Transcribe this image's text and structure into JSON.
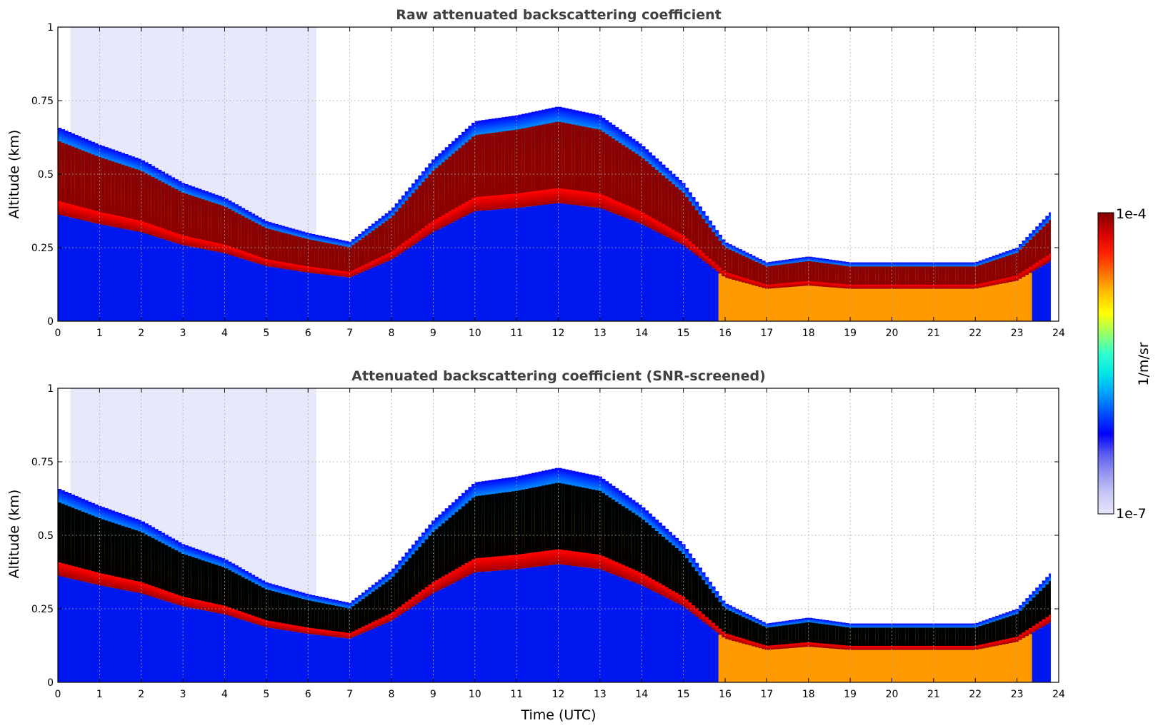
{
  "chart_data": [
    {
      "type": "heatmap",
      "title": "Raw attenuated backscattering coefficient",
      "xlabel": "",
      "ylabel": "Altitude (km)",
      "xlim": [
        0,
        24
      ],
      "ylim": [
        0,
        1
      ],
      "x_ticks": [
        "0",
        "1",
        "2",
        "3",
        "4",
        "5",
        "6",
        "7",
        "8",
        "9",
        "10",
        "11",
        "12",
        "13",
        "14",
        "15",
        "16",
        "17",
        "18",
        "19",
        "20",
        "21",
        "22",
        "23",
        "24"
      ],
      "y_ticks": [
        "0",
        "0.25",
        "0.5",
        "0.75",
        "1"
      ],
      "grid": true,
      "colormap": "jet (log scale)",
      "cloud_top_km": {
        "time": [
          0,
          1,
          2,
          3,
          4,
          5,
          6,
          7,
          8,
          9,
          10,
          11,
          12,
          13,
          14,
          15,
          16,
          17,
          18,
          19,
          20,
          21,
          22,
          23,
          23.8
        ],
        "altitude": [
          0.66,
          0.6,
          0.55,
          0.47,
          0.42,
          0.34,
          0.3,
          0.27,
          0.38,
          0.55,
          0.68,
          0.7,
          0.73,
          0.7,
          0.6,
          0.47,
          0.27,
          0.2,
          0.22,
          0.2,
          0.2,
          0.2,
          0.2,
          0.25,
          0.37
        ]
      }
    },
    {
      "type": "heatmap",
      "title": "Attenuated backscattering coefficient (SNR-screened)",
      "xlabel": "Time (UTC)",
      "ylabel": "Altitude (km)",
      "xlim": [
        0,
        24
      ],
      "ylim": [
        0,
        1
      ],
      "x_ticks": [
        "0",
        "1",
        "2",
        "3",
        "4",
        "5",
        "6",
        "7",
        "8",
        "9",
        "10",
        "11",
        "12",
        "13",
        "14",
        "15",
        "16",
        "17",
        "18",
        "19",
        "20",
        "21",
        "22",
        "23",
        "24"
      ],
      "y_ticks": [
        "0",
        "0.25",
        "0.5",
        "0.75",
        "1"
      ],
      "grid": true,
      "colormap": "jet (log scale), saturated values screened to black",
      "cloud_top_km": {
        "time": [
          0,
          1,
          2,
          3,
          4,
          5,
          6,
          7,
          8,
          9,
          10,
          11,
          12,
          13,
          14,
          15,
          16,
          17,
          18,
          19,
          20,
          21,
          22,
          23,
          23.8
        ],
        "altitude": [
          0.66,
          0.6,
          0.55,
          0.47,
          0.42,
          0.34,
          0.3,
          0.27,
          0.38,
          0.55,
          0.68,
          0.7,
          0.73,
          0.7,
          0.6,
          0.47,
          0.27,
          0.2,
          0.22,
          0.2,
          0.2,
          0.2,
          0.2,
          0.25,
          0.37
        ]
      }
    }
  ],
  "colorbar": {
    "max_label": "1e-4",
    "min_label": "1e-7",
    "unit_label": "1/m/sr",
    "colors": [
      "#e6e6fa",
      "#c8c8f5",
      "#9696f0",
      "#5a5af0",
      "#0000ff",
      "#0050ff",
      "#00a0ff",
      "#00e6e6",
      "#33ffcc",
      "#99ff66",
      "#ffff00",
      "#ffc000",
      "#ff7000",
      "#ff2000",
      "#d00000",
      "#800000"
    ]
  }
}
